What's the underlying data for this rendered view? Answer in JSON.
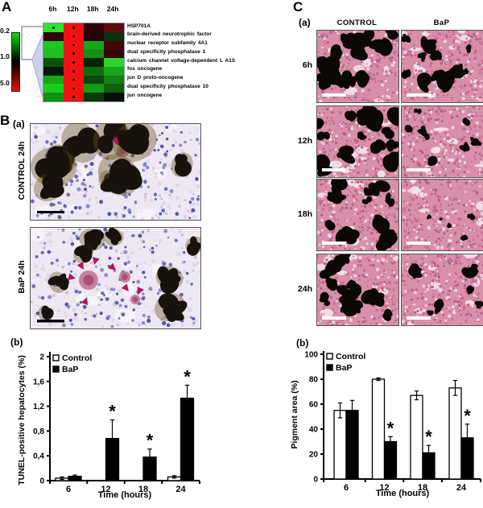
{
  "figure": {
    "panelA": {
      "label": "A",
      "col_headers": [
        "6h",
        "12h",
        "18h",
        "24h"
      ],
      "scale_labels": [
        "0.2",
        "1.0",
        "5.0"
      ],
      "genes": [
        "HSP701A",
        "brain-derived neurotrophic factor",
        "nuclear receptor subfamily 4A1",
        "dual specificity phosphatase 1",
        "calcium channel voltage-dependent L A1S",
        "fos oncogene",
        "jun D proto-oncogene",
        "dual specificity phosphatase 10",
        "jun oncogene"
      ],
      "heatmap_colors": [
        [
          "#2ee22e",
          "#ef1212",
          "#320303",
          "#5e0d0d"
        ],
        [
          "#320505",
          "#ef1212",
          "#230303",
          "#0d300d"
        ],
        [
          "#1fc81f",
          "#ef1212",
          "#17a817",
          "#420707"
        ],
        [
          "#1fc01f",
          "#ef1212",
          "#139013",
          "#380505"
        ],
        [
          "#0b520b",
          "#ef1212",
          "#052205",
          "#2ad42a"
        ],
        [
          "#081808",
          "#ef1212",
          "#0e6e0e",
          "#17a817"
        ],
        [
          "#17a817",
          "#ef1212",
          "#0c460c",
          "#128012"
        ],
        [
          "#1fca1f",
          "#ef1212",
          "#149c14",
          "#0e5e0e"
        ],
        [
          "#119011",
          "#ef1212",
          "#0a3a0a",
          "#060c06"
        ]
      ],
      "dots": [
        [
          0,
          0
        ],
        [
          0,
          1
        ],
        [
          1,
          1
        ],
        [
          2,
          1
        ],
        [
          3,
          1
        ],
        [
          4,
          1
        ],
        [
          5,
          1
        ],
        [
          6,
          1
        ],
        [
          7,
          1
        ],
        [
          8,
          1
        ]
      ]
    },
    "panelB": {
      "label": "B",
      "sub_a": "(a)",
      "sub_b": "(b)",
      "images": [
        {
          "label": "CONTROL 24h"
        },
        {
          "label": "BaP 24h"
        }
      ],
      "arrowhead_color": "#b5125c"
    },
    "panelC": {
      "label": "C",
      "sub_a": "(a)",
      "sub_b": "(b)",
      "col_headers": [
        "CONTROL",
        "BaP"
      ],
      "row_labels": [
        "6h",
        "12h",
        "18h",
        "24h"
      ]
    }
  },
  "chart_data": [
    {
      "id": "tunel",
      "type": "bar",
      "title": "",
      "categories": [
        "6",
        "12",
        "18",
        "24"
      ],
      "series": [
        {
          "name": "Control",
          "values": [
            0.04,
            0,
            0,
            0.06
          ],
          "errors": [
            0.02,
            0,
            0,
            0.02
          ]
        },
        {
          "name": "BaP",
          "values": [
            0.07,
            0.68,
            0.38,
            1.33
          ],
          "errors": [
            0.02,
            0.3,
            0.13,
            0.21
          ]
        }
      ],
      "significance_on_bap": [
        false,
        true,
        true,
        true
      ],
      "significance_symbol": "*",
      "xlabel": "Time (hours)",
      "ylabel": "TUNEL-positive hepatocytes (%)",
      "ylim": [
        0,
        2
      ],
      "ytick_values": [
        0,
        0.4,
        0.8,
        1.2,
        1.6,
        2
      ],
      "ytick_labels": [
        "0",
        "0,4",
        "0,8",
        "1,2",
        "1,6",
        "2"
      ],
      "legend_position": "top-left",
      "grid": false
    },
    {
      "id": "pigment",
      "type": "bar",
      "title": "",
      "categories": [
        "6",
        "12",
        "18",
        "24"
      ],
      "series": [
        {
          "name": "Control",
          "values": [
            55,
            80,
            67,
            73
          ],
          "errors": [
            6,
            1,
            3.5,
            6
          ]
        },
        {
          "name": "BaP",
          "values": [
            55,
            30,
            21,
            33
          ],
          "errors": [
            8,
            4,
            6,
            11
          ]
        }
      ],
      "significance_on_bap": [
        false,
        true,
        true,
        true
      ],
      "significance_symbol": "*",
      "xlabel": "Time (hours)",
      "ylabel": "Pigment area (%)",
      "ylim": [
        0,
        100
      ],
      "ytick_values": [
        0,
        20,
        40,
        60,
        80,
        100
      ],
      "ytick_labels": [
        "0",
        "20",
        "40",
        "60",
        "80",
        "100"
      ],
      "legend_position": "top-left",
      "grid": false
    }
  ]
}
